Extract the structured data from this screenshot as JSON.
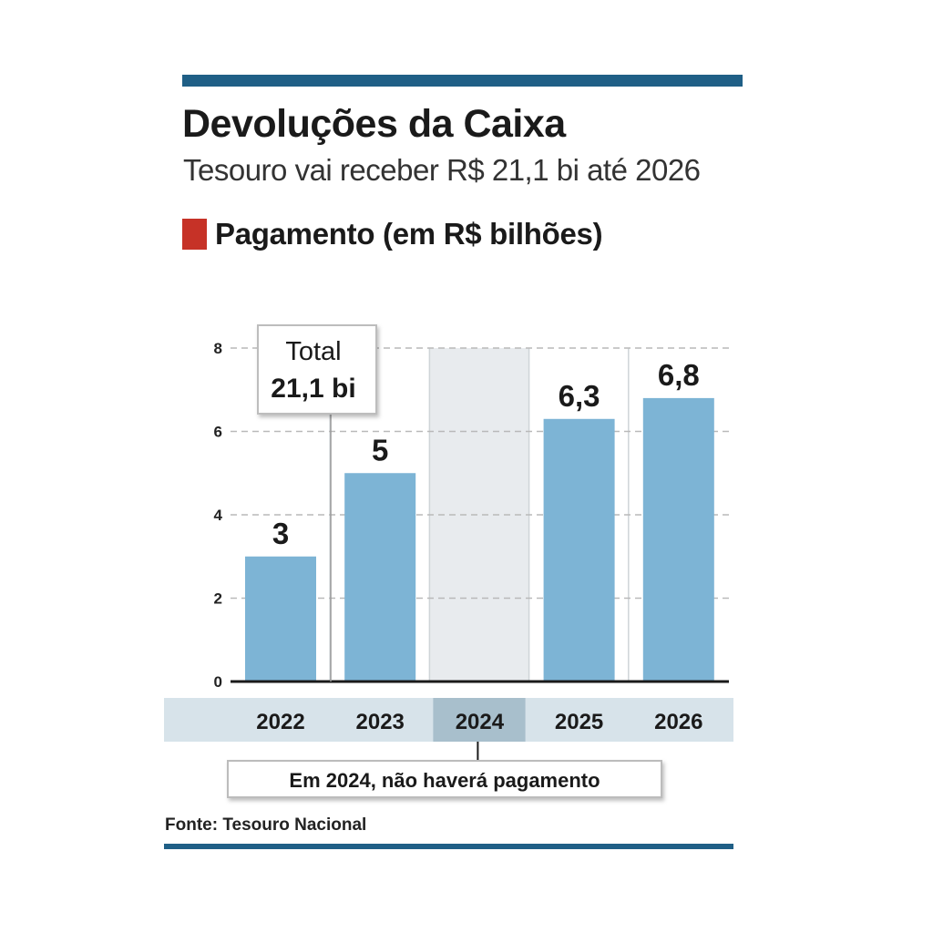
{
  "header": {
    "title": "Devoluções da Caixa",
    "subtitle": "Tesouro vai receber R$ 21,1 bi até 2026",
    "legend_label": "Pagamento (em R$ bilhões)"
  },
  "footer": {
    "source": "Fonte: Tesouro Nacional"
  },
  "colors": {
    "rule": "#1f5f86",
    "legend_swatch": "#c63227",
    "bar": "#7db4d5",
    "highlight_band": "#e8ebee",
    "category_strip": "#d7e3ea",
    "category_highlight": "#a8bfcc"
  },
  "chart_data": {
    "type": "bar",
    "categories": [
      "2022",
      "2023",
      "2024",
      "2025",
      "2026"
    ],
    "values": [
      3,
      5,
      null,
      6.3,
      6.8
    ],
    "value_labels": [
      "3",
      "5",
      "",
      "6,3",
      "6,8"
    ],
    "ylim": [
      0,
      8
    ],
    "yticks": [
      0,
      2,
      4,
      6,
      8
    ],
    "grid": true,
    "highlight_category": "2024",
    "total_callout": {
      "line1": "Total",
      "line2": "21,1 bi"
    },
    "note": "Em 2024, não haverá pagamento"
  }
}
